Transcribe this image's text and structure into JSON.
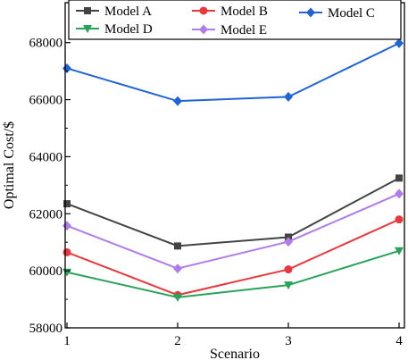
{
  "chart_data": {
    "type": "line",
    "title": "",
    "xlabel": "Scenario",
    "ylabel": "Optimal Cost/$",
    "x": [
      1,
      2,
      3,
      4
    ],
    "xticks": [
      "1",
      "2",
      "3",
      "4"
    ],
    "ylim": [
      58000,
      69400
    ],
    "yticks": [
      "58000",
      "60000",
      "62000",
      "64000",
      "66000",
      "68000"
    ],
    "ytick_values": [
      58000,
      60000,
      62000,
      64000,
      66000,
      68000
    ],
    "grid": false,
    "legend_position": "top",
    "series": [
      {
        "name": "Model A",
        "values": [
          62350,
          60870,
          61180,
          63250
        ],
        "color": "#444444",
        "marker": "square"
      },
      {
        "name": "Model B",
        "values": [
          60650,
          59150,
          60050,
          61800
        ],
        "color": "#e8383d",
        "marker": "circle"
      },
      {
        "name": "Model C",
        "values": [
          67100,
          65950,
          66100,
          67980
        ],
        "color": "#1f63d6",
        "marker": "diamond"
      },
      {
        "name": "Model D",
        "values": [
          59950,
          59070,
          59500,
          60700
        ],
        "color": "#29a35a",
        "marker": "triangle-down"
      },
      {
        "name": "Model E",
        "values": [
          61580,
          60080,
          61020,
          62700
        ],
        "color": "#b07ce8",
        "marker": "diamond"
      }
    ]
  }
}
